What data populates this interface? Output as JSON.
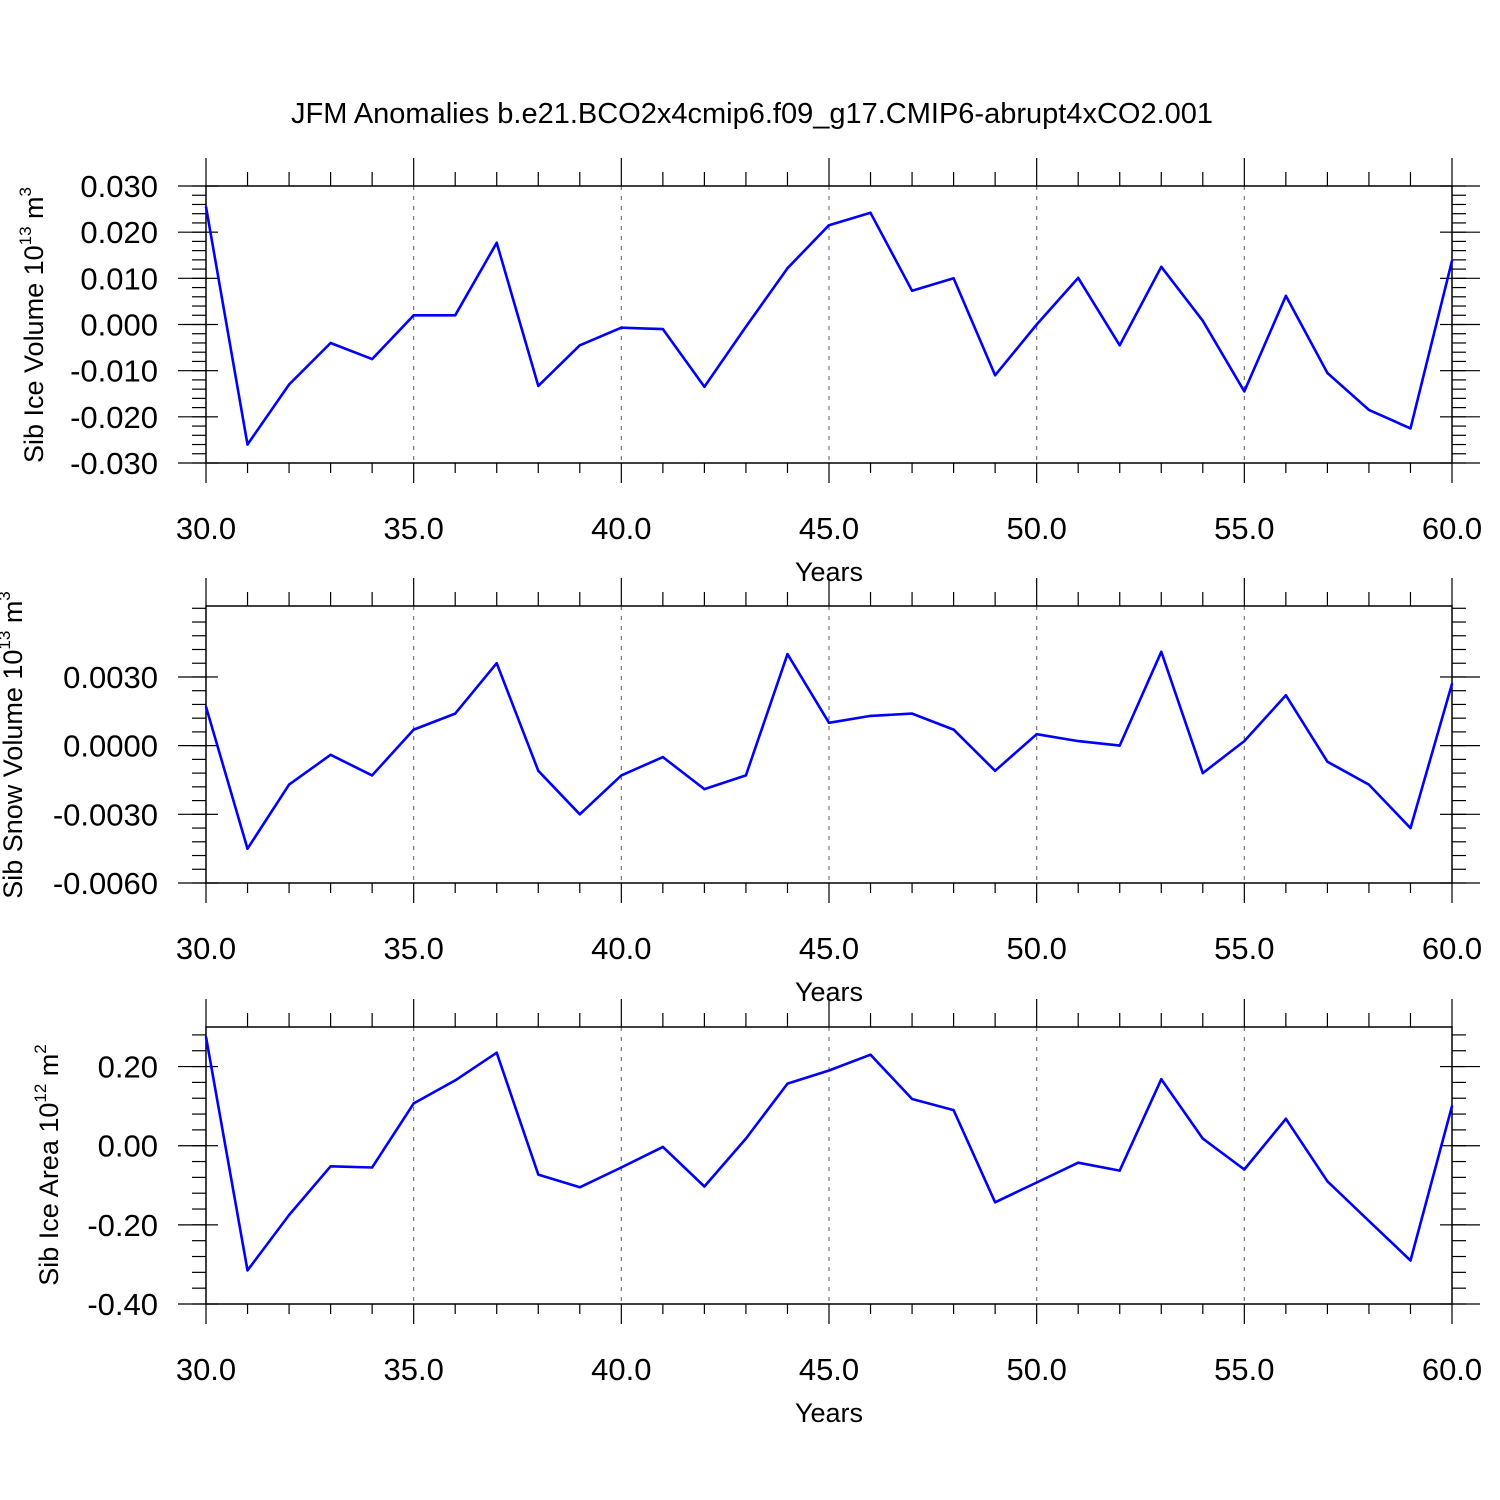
{
  "title": "JFM Anomalies b.e21.BCO2x4cmip6.f09_g17.CMIP6-abrupt4xCO2.001",
  "series_color": "#0000ff",
  "chart_data": [
    {
      "type": "line",
      "xlabel": "Years",
      "ylabel": {
        "prefix": "Sib Ice Volume 10",
        "exp": "13",
        "mid": " m",
        "unit_exp": "3"
      },
      "xlim": [
        30,
        60
      ],
      "ylim": [
        -0.03,
        0.03
      ],
      "yticks": [
        -0.03,
        -0.02,
        -0.01,
        0.0,
        0.01,
        0.02,
        0.03
      ],
      "ytick_labels": [
        "-0.030",
        "-0.020",
        "-0.010",
        "0.000",
        "0.010",
        "0.020",
        "0.030"
      ],
      "xticks": [
        30,
        35,
        40,
        45,
        50,
        55,
        60
      ],
      "xtick_labels": [
        "30.0",
        "35.0",
        "40.0",
        "45.0",
        "50.0",
        "55.0",
        "60.0"
      ],
      "grid": "vertical-dashed",
      "x": [
        30,
        31,
        32,
        33,
        34,
        35,
        36,
        37,
        38,
        39,
        40,
        41,
        42,
        43,
        44,
        45,
        46,
        47,
        48,
        49,
        50,
        51,
        52,
        53,
        54,
        55,
        56,
        57,
        58,
        59,
        60
      ],
      "values": [
        0.0255,
        -0.026,
        -0.013,
        -0.004,
        -0.0075,
        0.002,
        0.002,
        0.0177,
        -0.0133,
        -0.0045,
        -0.0007,
        -0.001,
        -0.0135,
        -0.0005,
        0.0122,
        0.0215,
        0.0242,
        0.0073,
        0.01,
        -0.011,
        0.0,
        0.0101,
        -0.0045,
        0.0125,
        0.0008,
        -0.0145,
        0.0062,
        -0.0105,
        -0.0185,
        -0.0225,
        0.0138
      ]
    },
    {
      "type": "line",
      "xlabel": "Years",
      "ylabel": {
        "prefix": "Sib Snow Volume 10",
        "exp": "13",
        "mid": " m",
        "unit_exp": "3"
      },
      "xlim": [
        30,
        60
      ],
      "ylim": [
        -0.006,
        0.0061
      ],
      "yticks": [
        -0.006,
        -0.003,
        0.0,
        0.003
      ],
      "ytick_labels": [
        "-0.0060",
        "-0.0030",
        "0.0000",
        "0.0030"
      ],
      "xticks": [
        30,
        35,
        40,
        45,
        50,
        55,
        60
      ],
      "xtick_labels": [
        "30.0",
        "35.0",
        "40.0",
        "45.0",
        "50.0",
        "55.0",
        "60.0"
      ],
      "grid": "vertical-dashed",
      "x": [
        30,
        31,
        32,
        33,
        34,
        35,
        36,
        37,
        38,
        39,
        40,
        41,
        42,
        43,
        44,
        45,
        46,
        47,
        48,
        49,
        50,
        51,
        52,
        53,
        54,
        55,
        56,
        57,
        58,
        59,
        60
      ],
      "values": [
        0.0017,
        -0.0045,
        -0.0017,
        -0.0004,
        -0.0013,
        0.0007,
        0.0014,
        0.0036,
        -0.0011,
        -0.003,
        -0.0013,
        -0.0005,
        -0.0019,
        -0.0013,
        0.004,
        0.001,
        0.0013,
        0.0014,
        0.0007,
        -0.0011,
        0.0005,
        0.0002,
        0.0,
        0.0041,
        -0.0012,
        0.0002,
        0.0022,
        -0.0007,
        -0.0017,
        -0.0036,
        0.0027
      ]
    },
    {
      "type": "line",
      "xlabel": "Years",
      "ylabel": {
        "prefix": "Sib Ice Area 10",
        "exp": "12",
        "mid": " m",
        "unit_exp": "2"
      },
      "xlim": [
        30,
        60
      ],
      "ylim": [
        -0.4,
        0.3
      ],
      "yticks": [
        -0.4,
        -0.2,
        0.0,
        0.2
      ],
      "ytick_labels": [
        "-0.40",
        "-0.20",
        "0.00",
        "0.20"
      ],
      "xticks": [
        30,
        35,
        40,
        45,
        50,
        55,
        60
      ],
      "xtick_labels": [
        "30.0",
        "35.0",
        "40.0",
        "45.0",
        "50.0",
        "55.0",
        "60.0"
      ],
      "grid": "vertical-dashed",
      "x": [
        30,
        31,
        32,
        33,
        34,
        35,
        36,
        37,
        38,
        39,
        40,
        41,
        42,
        43,
        44,
        45,
        46,
        47,
        48,
        49,
        50,
        51,
        52,
        53,
        54,
        55,
        56,
        57,
        58,
        59,
        60
      ],
      "values": [
        0.275,
        -0.315,
        -0.175,
        -0.052,
        -0.055,
        0.107,
        0.165,
        0.235,
        -0.073,
        -0.105,
        -0.055,
        -0.003,
        -0.103,
        0.018,
        0.157,
        0.19,
        0.23,
        0.118,
        0.09,
        -0.143,
        -0.093,
        -0.043,
        -0.063,
        0.168,
        0.018,
        -0.06,
        0.068,
        -0.09,
        -0.19,
        -0.29,
        0.1
      ]
    }
  ]
}
